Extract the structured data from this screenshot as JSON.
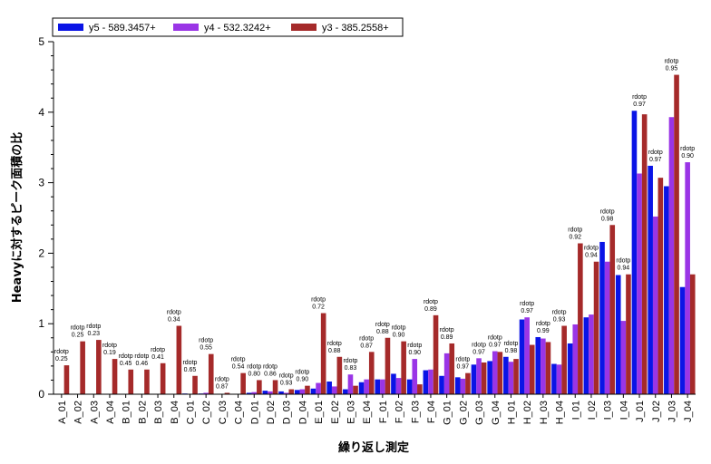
{
  "chart_data": {
    "type": "bar",
    "xlabel": "繰り返し測定",
    "ylabel": "Heavyに対するピーク面積の比",
    "ylim": [
      0,
      5
    ],
    "yticks": [
      "0",
      "1",
      "2",
      "3",
      "4",
      "5"
    ],
    "legend_position": "top-left",
    "categories": [
      "A_01",
      "A_02",
      "A_03",
      "A_04",
      "B_01",
      "B_02",
      "B_03",
      "B_04",
      "C_01",
      "C_02",
      "C_03",
      "C_04",
      "D_01",
      "D_02",
      "D_03",
      "D_04",
      "E_01",
      "E_02",
      "E_03",
      "E_04",
      "F_01",
      "F_02",
      "F_03",
      "F_04",
      "G_01",
      "G_02",
      "G_03",
      "G_04",
      "H_01",
      "H_02",
      "H_03",
      "H_04",
      "I_01",
      "I_02",
      "I_03",
      "I_04",
      "J_01",
      "J_02",
      "J_03",
      "J_04"
    ],
    "series": [
      {
        "name": "y5 - 589.3457+",
        "color": "#0a14e6",
        "values": [
          0.0,
          0.0,
          0.0,
          0.0,
          0.0,
          0.0,
          0.0,
          0.0,
          0.01,
          0.01,
          0.0,
          0.0,
          0.02,
          0.05,
          0.04,
          0.06,
          0.08,
          0.18,
          0.07,
          0.17,
          0.21,
          0.29,
          0.21,
          0.34,
          0.26,
          0.24,
          0.42,
          0.47,
          0.53,
          1.06,
          0.81,
          0.43,
          0.72,
          1.09,
          2.16,
          1.69,
          4.02,
          3.24,
          2.95,
          1.52
        ]
      },
      {
        "name": "y4 - 532.3242+",
        "color": "#9a35e6",
        "values": [
          0.0,
          0.0,
          0.0,
          0.0,
          0.0,
          0.0,
          0.0,
          0.0,
          0.0,
          0.02,
          0.0,
          0.0,
          0.03,
          0.04,
          0.02,
          0.07,
          0.16,
          0.11,
          0.28,
          0.21,
          0.21,
          0.23,
          0.5,
          0.35,
          0.58,
          0.22,
          0.51,
          0.61,
          0.46,
          1.09,
          0.79,
          0.42,
          0.99,
          1.13,
          1.88,
          1.04,
          3.13,
          2.52,
          3.93,
          3.29
        ]
      },
      {
        "name": "y3 - 385.2558+",
        "color": "#a52a2a",
        "values": [
          0.41,
          0.75,
          0.77,
          0.5,
          0.35,
          0.35,
          0.44,
          0.97,
          0.26,
          0.57,
          0.02,
          0.3,
          0.2,
          0.2,
          0.07,
          0.12,
          1.15,
          0.53,
          0.12,
          0.6,
          0.8,
          0.75,
          0.14,
          1.12,
          0.72,
          0.3,
          0.45,
          0.6,
          0.5,
          0.7,
          0.74,
          0.97,
          2.14,
          1.88,
          2.4,
          1.7,
          3.97,
          3.07,
          4.53,
          1.7
        ]
      }
    ],
    "annotations": [
      {
        "category": "A_01",
        "label": "rdotp",
        "value": "0.25"
      },
      {
        "category": "A_02",
        "label": "rdotp",
        "value": "0.25"
      },
      {
        "category": "A_03",
        "label": "rdotp",
        "value": "0.23"
      },
      {
        "category": "A_04",
        "label": "rdotp",
        "value": "0.19"
      },
      {
        "category": "B_01",
        "label": "rdotp",
        "value": "0.45"
      },
      {
        "category": "B_02",
        "label": "rdotp",
        "value": "0.46"
      },
      {
        "category": "B_03",
        "label": "rdotp",
        "value": "0.41"
      },
      {
        "category": "B_04",
        "label": "rdotp",
        "value": "0.34"
      },
      {
        "category": "C_01",
        "label": "rdotp",
        "value": "0.65"
      },
      {
        "category": "C_02",
        "label": "rdotp",
        "value": "0.55"
      },
      {
        "category": "C_03",
        "label": "rdotp",
        "value": "0.87"
      },
      {
        "category": "C_04",
        "label": "rdotp",
        "value": "0.54"
      },
      {
        "category": "D_01",
        "label": "rdotp",
        "value": "0.80"
      },
      {
        "category": "D_02",
        "label": "rdotp",
        "value": "0.86"
      },
      {
        "category": "D_03",
        "label": "rdotp",
        "value": "0.93"
      },
      {
        "category": "D_04",
        "label": "rdotp",
        "value": "0.90"
      },
      {
        "category": "E_01",
        "label": "rdotp",
        "value": "0.72"
      },
      {
        "category": "E_02",
        "label": "rdotp",
        "value": "0.88"
      },
      {
        "category": "E_03",
        "label": "rdotp",
        "value": "0.83"
      },
      {
        "category": "E_04",
        "label": "rdotp",
        "value": "0.87"
      },
      {
        "category": "F_01",
        "label": "rdotp",
        "value": "0.88"
      },
      {
        "category": "F_02",
        "label": "rdotp",
        "value": "0.90"
      },
      {
        "category": "F_03",
        "label": "rdotp",
        "value": "0.90"
      },
      {
        "category": "F_04",
        "label": "rdotp",
        "value": "0.89"
      },
      {
        "category": "G_01",
        "label": "rdotp",
        "value": "0.89"
      },
      {
        "category": "G_02",
        "label": "rdotp",
        "value": "0.97"
      },
      {
        "category": "G_03",
        "label": "rdotp",
        "value": "0.97"
      },
      {
        "category": "G_04",
        "label": "rdotp",
        "value": "0.97"
      },
      {
        "category": "H_01",
        "label": "rdotp",
        "value": "0.98"
      },
      {
        "category": "H_02",
        "label": "rdotp",
        "value": "0.97"
      },
      {
        "category": "H_03",
        "label": "rdotp",
        "value": "0.99"
      },
      {
        "category": "H_04",
        "label": "rdotp",
        "value": "0.93"
      },
      {
        "category": "I_01",
        "label": "rdotp",
        "value": "0.92"
      },
      {
        "category": "I_02",
        "label": "rdotp",
        "value": "0.94"
      },
      {
        "category": "I_03",
        "label": "rdotp",
        "value": "0.98"
      },
      {
        "category": "I_04",
        "label": "rdotp",
        "value": "0.94"
      },
      {
        "category": "J_01",
        "label": "rdotp",
        "value": "0.97"
      },
      {
        "category": "J_02",
        "label": "rdotp",
        "value": "0.97"
      },
      {
        "category": "J_03",
        "label": "rdotp",
        "value": "0.95"
      },
      {
        "category": "J_04",
        "label": "rdotp",
        "value": "0.90"
      }
    ]
  }
}
